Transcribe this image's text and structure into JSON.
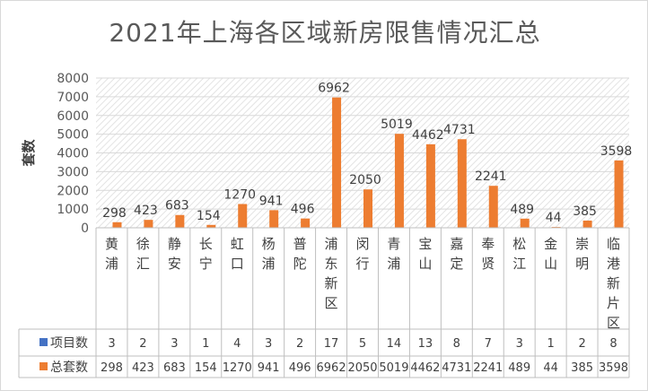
{
  "chart_data": {
    "type": "bar",
    "title": "2021年上海各区域新房限售情况汇总",
    "ylabel": "套数",
    "ylim": [
      0,
      8000
    ],
    "yticks": [
      "0",
      "1000",
      "2000",
      "3000",
      "4000",
      "5000",
      "6000",
      "7000",
      "8000"
    ],
    "categories": [
      [
        "黄",
        "浦"
      ],
      [
        "徐",
        "汇"
      ],
      [
        "静",
        "安"
      ],
      [
        "长",
        "宁"
      ],
      [
        "虹",
        "口"
      ],
      [
        "杨",
        "浦"
      ],
      [
        "普",
        "陀"
      ],
      [
        "浦",
        "东",
        "新",
        "区"
      ],
      [
        "闵",
        "行"
      ],
      [
        "青",
        "浦"
      ],
      [
        "宝",
        "山"
      ],
      [
        "嘉",
        "定"
      ],
      [
        "奉",
        "贤"
      ],
      [
        "松",
        "江"
      ],
      [
        "金",
        "山"
      ],
      [
        "崇",
        "明"
      ],
      [
        "临",
        "港",
        "新",
        "片",
        "区"
      ]
    ],
    "series": [
      {
        "name": "项目数",
        "color": "#4472c4",
        "values": [
          3,
          2,
          3,
          1,
          4,
          3,
          2,
          17,
          5,
          14,
          13,
          8,
          7,
          3,
          1,
          2,
          8
        ]
      },
      {
        "name": "总套数",
        "color": "#ed7d31",
        "values": [
          298,
          423,
          683,
          154,
          1270,
          941,
          496,
          6962,
          2050,
          5019,
          4462,
          4731,
          2241,
          489,
          44,
          385,
          3598
        ]
      }
    ],
    "data_table": true,
    "grid": true
  }
}
